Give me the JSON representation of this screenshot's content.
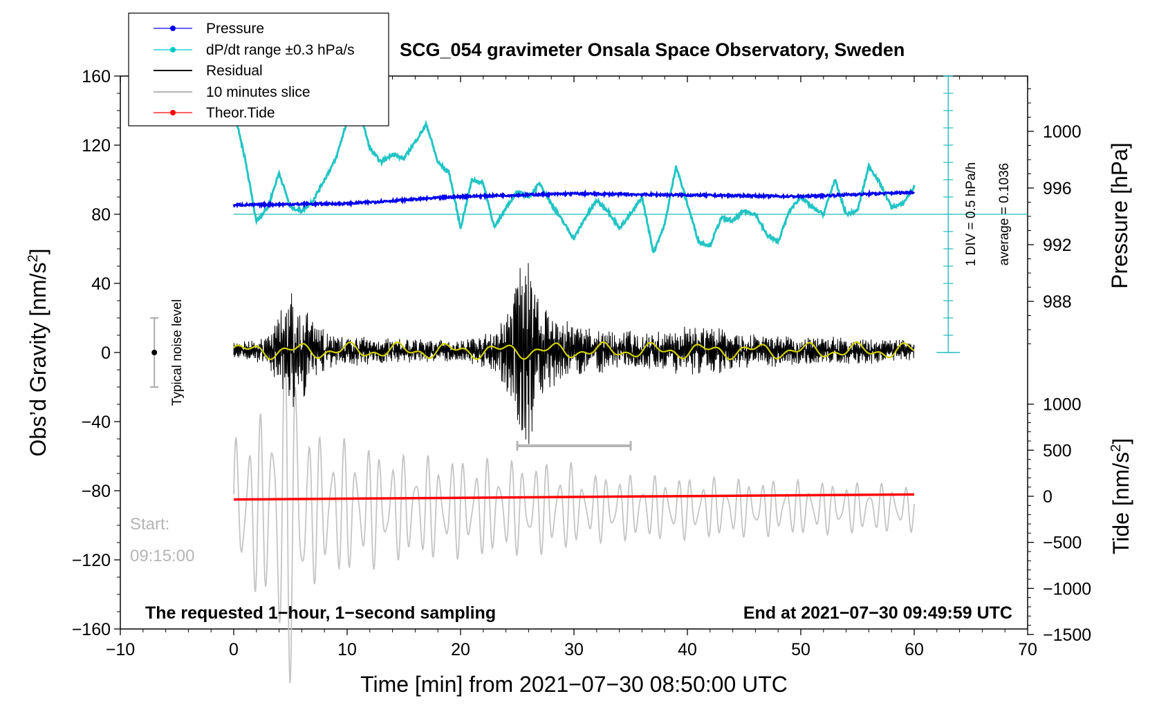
{
  "chart_data": {
    "type": "line",
    "title": "SCG_054 gravimeter Onsala Space Observatory, Sweden",
    "xlabel": "Time [min] from 2021−07−30 08:50:00 UTC",
    "ylabel_main": "Obs’d Gravity [nm/s",
    "ylabel_main_sup": "2",
    "ylabel_main_close": "]",
    "ylabel_pressure": "Pressure [hPa]",
    "ylabel_tide": "Tide [nm/s",
    "ylabel_tide_sup": "2",
    "ylabel_tide_close": "]",
    "xlim": [
      -10,
      70
    ],
    "ylim": [
      -160,
      160
    ],
    "pressure_lim": [
      980,
      1004
    ],
    "tide_lim": [
      -1500,
      1500
    ],
    "x_ticks": [
      "−10",
      "0",
      "10",
      "20",
      "30",
      "40",
      "50",
      "60",
      "70"
    ],
    "y_ticks": [
      "−160",
      "−120",
      "−80",
      "−40",
      "0",
      "40",
      "80",
      "120",
      "160"
    ],
    "pressure_ticks": [
      "988",
      "992",
      "996",
      "1000"
    ],
    "tide_ticks": [
      "−1500",
      "−1000",
      "−500",
      "0",
      "500",
      "1000"
    ],
    "legend": [
      {
        "label": "Pressure",
        "color": "#0000ee",
        "marker": true
      },
      {
        "label": "dP/dt range ±0.3 hPa/s",
        "color": "#00c8c8",
        "marker": true
      },
      {
        "label": "Residual",
        "color": "#000000",
        "marker": false
      },
      {
        "label": "10 minutes slice",
        "color": "#b5b5b5",
        "marker": false
      },
      {
        "label": "Theor.Tide",
        "color": "#ff0000",
        "marker": true
      }
    ],
    "annotations": {
      "noise": "Typical noise level",
      "div": "1 DIV = 0.5 hPa/h",
      "average": "average = 0.1036",
      "start_label": "Start:",
      "start_time": "09:15:00",
      "sampling_note": "The requested 1−hour, 1−second sampling",
      "end_note": "End at 2021−07−30 09:49:59 UTC"
    },
    "noise_range": [
      -20,
      20
    ],
    "slice_range_min": [
      25,
      35
    ],
    "pressure_series": {
      "x": [
        0,
        10,
        20,
        30,
        40,
        50,
        60
      ],
      "values": [
        994.8,
        994.9,
        995.4,
        995.6,
        995.5,
        995.4,
        995.7
      ]
    },
    "dpdt_series": {
      "x": [
        0,
        1,
        2,
        3,
        4,
        5,
        6,
        7,
        8,
        9,
        10,
        11,
        12,
        13,
        14,
        15,
        16,
        17,
        18,
        19,
        20,
        21,
        22,
        23,
        24,
        25,
        26,
        27,
        28,
        29,
        30,
        31,
        32,
        33,
        34,
        35,
        36,
        37,
        38,
        39,
        40,
        41,
        42,
        43,
        44,
        45,
        46,
        47,
        48,
        49,
        50,
        51,
        52,
        53,
        54,
        55,
        56,
        57,
        58,
        59,
        60
      ],
      "values": [
        140,
        112,
        76,
        84,
        104,
        84,
        82,
        88,
        100,
        112,
        134,
        142,
        118,
        110,
        115,
        112,
        122,
        132,
        110,
        104,
        72,
        100,
        98,
        72,
        84,
        93,
        90,
        98,
        86,
        76,
        66,
        78,
        88,
        82,
        72,
        80,
        90,
        58,
        74,
        108,
        86,
        64,
        62,
        78,
        76,
        82,
        80,
        68,
        64,
        82,
        90,
        84,
        80,
        100,
        80,
        82,
        108,
        98,
        84,
        86,
        96
      ]
    },
    "residual_envelope": {
      "x": [
        0,
        3,
        5,
        6,
        7,
        9,
        15,
        20,
        23,
        24,
        25,
        26,
        27,
        28,
        30,
        33,
        38,
        40,
        45,
        50,
        55,
        60
      ],
      "values": [
        4,
        7,
        30,
        28,
        14,
        8,
        6,
        5,
        10,
        20,
        44,
        52,
        28,
        18,
        14,
        10,
        10,
        14,
        9,
        7,
        7,
        5
      ]
    },
    "tide_series": {
      "x": [
        0,
        60
      ],
      "values": [
        -35,
        20
      ]
    },
    "slice_series_note": "10 minutes slice stretched over 0–60 min"
  }
}
